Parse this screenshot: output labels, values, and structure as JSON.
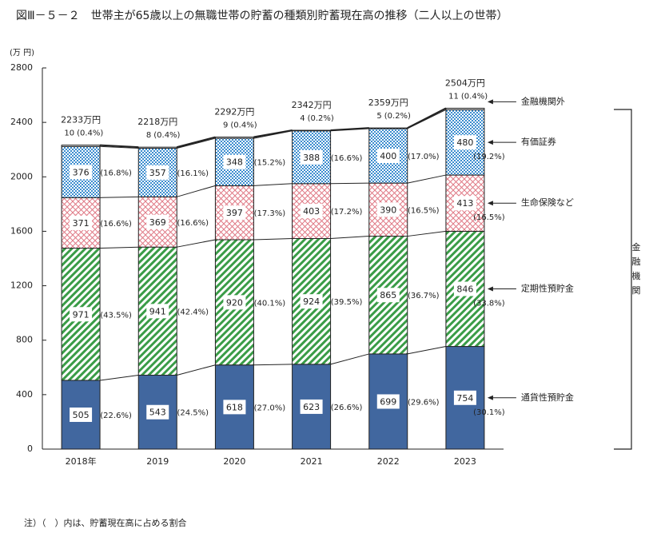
{
  "chart_data": {
    "type": "stacked_bar",
    "title": "図Ⅲ－５－２　世帯主が65歳以上の無職世帯の貯蓄の種類別貯蓄現在高の推移（二人以上の世帯）",
    "y_unit": "(万 円)",
    "categories": [
      "2018年",
      "2019",
      "2020",
      "2021",
      "2022",
      "2023"
    ],
    "ylim": [
      0,
      2800
    ],
    "yticks": [
      0,
      400,
      800,
      1200,
      1600,
      2000,
      2400,
      2800
    ],
    "series": [
      {
        "name": "通貨性預貯金",
        "color": "#41679f",
        "pattern": "solid",
        "values": [
          505,
          543,
          618,
          623,
          699,
          754
        ],
        "share_labels": [
          "(22.6%)",
          "(24.5%)",
          "(27.0%)",
          "(26.6%)",
          "(29.6%)",
          "(30.1%)"
        ]
      },
      {
        "name": "定期性預貯金",
        "color": "#3a9c47",
        "pattern": "stripes",
        "values": [
          971,
          941,
          920,
          924,
          865,
          846
        ],
        "share_labels": [
          "(43.5%)",
          "(42.4%)",
          "(40.1%)",
          "(39.5%)",
          "(36.7%)",
          "(33.8%)"
        ]
      },
      {
        "name": "生命保険など",
        "color": "#e07a86",
        "pattern": "crosshatch",
        "values": [
          371,
          369,
          397,
          403,
          390,
          413
        ],
        "share_labels": [
          "(16.6%)",
          "(16.6%)",
          "(17.3%)",
          "(17.2%)",
          "(16.5%)",
          "(16.5%)"
        ]
      },
      {
        "name": "有価証券",
        "color": "#3c8dcf",
        "pattern": "dots",
        "values": [
          376,
          357,
          348,
          388,
          400,
          480
        ],
        "share_labels": [
          "(16.8%)",
          "(16.1%)",
          "(15.2%)",
          "(16.6%)",
          "(17.0%)",
          "(19.2%)"
        ]
      },
      {
        "name": "金融機関外",
        "color": "#ffffff",
        "pattern": "none",
        "values": [
          10,
          8,
          9,
          4,
          5,
          11
        ],
        "share_labels": [
          "(0.4%)",
          "(0.4%)",
          "(0.4%)",
          "(0.2%)",
          "(0.2%)",
          "(0.4%)"
        ]
      }
    ],
    "totals": [
      2233,
      2218,
      2292,
      2342,
      2359,
      2504
    ],
    "total_labels": [
      "2233万円",
      "2218万円",
      "2292万円",
      "2342万円",
      "2359万円",
      "2504万円"
    ],
    "bracket_label": "金融機関",
    "note": "注）（　）内は、貯蓄現在高に占める割合"
  }
}
